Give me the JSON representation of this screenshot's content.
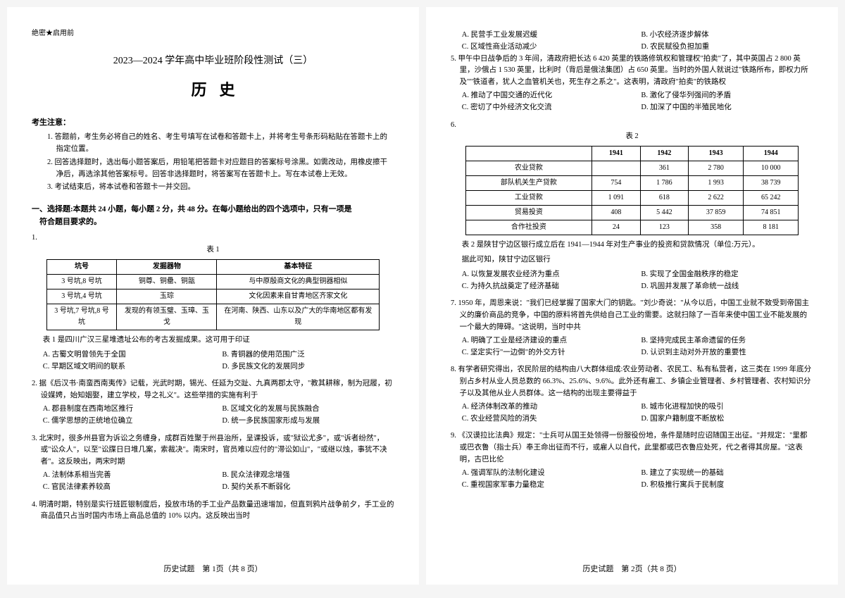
{
  "header_mark": "绝密★启用前",
  "title_main": "2023—2024 学年高中毕业班阶段性测试（三）",
  "title_subject": "历史",
  "notice_title": "考生注意：",
  "notice_items": [
    "1. 答题前，考生务必将自己的姓名、考生号填写在试卷和答题卡上，并将考生号条形码粘贴在答题卡上的指定位置。",
    "2. 回答选择题时，选出每小题答案后，用铅笔把答题卡对应题目的答案标号涂黑。如需改动，用橡皮擦干净后，再选涂其他答案标号。回答非选择题时，将答案写在答题卡上。写在本试卷上无效。",
    "3. 考试结束后，将本试卷和答题卡一并交回。"
  ],
  "section1_title": "一、选择题:本题共 24 小题，每小题 2 分，共 48 分。在每小题给出的四个选项中，只有一项是",
  "section1_title2": "符合题目要求的。",
  "q1": {
    "num": "1.",
    "table_caption": "表 1",
    "headers": [
      "坑号",
      "发掘器物",
      "基本特征"
    ],
    "rows": [
      [
        "3 号坑,8 号坑",
        "铜尊、铜罍、铜瓿",
        "与中原殷商文化的典型铜器相似"
      ],
      [
        "3 号坑,4 号坑",
        "玉琮",
        "文化因素来自甘青地区齐家文化"
      ],
      [
        "3 号坑,7 号坑,8 号坑",
        "发现的有领玉璧、玉璋、玉戈",
        "在河南、陕西、山东以及广大的华南地区都有发现"
      ]
    ],
    "note": "表 1 是四川广汉三星堆遗址公布的考古发掘成果。这可用于印证",
    "opts": [
      "A. 古蜀文明曾领先于全国",
      "B. 青铜器的使用范围广泛",
      "C. 早期区域文明间的联系",
      "D. 多民族文化的发展同步"
    ]
  },
  "q2": {
    "num": "2.",
    "text": "据《后汉书·南蛮西南夷传》记载，光武时期，锡光、任延为交趾、九真两郡太守，\"教其耕稼，制为冠履，初设媒娉，始知姻娶，建立学校，导之礼义\"。这些举措的实施有利于",
    "opts": [
      "A. 郡县制度在西南地区推行",
      "B. 区域文化的发展与民族融合",
      "C. 儒学思想的正统地位确立",
      "D. 统一多民族国家形成与发展"
    ]
  },
  "q3": {
    "num": "3.",
    "text": "北宋时，很多州县官为诉讼之务缠身，成群百姓聚于州县治所，呈课投诉，或\"狱讼尤多\"，或\"诉者纷然\"，或\"讼众人\"，以至\"讼牒日日堆几案，索裁决\"。南宋时，官员难以应付的\"滞讼如山\"，\"或继以烛，事犹不决者\"。这反映出，两宋时期",
    "opts": [
      "A. 法制体系相当完善",
      "B. 民众法律观念增强",
      "C. 官民法律素养较高",
      "D. 契约关系不断弱化"
    ]
  },
  "q4": {
    "num": "4.",
    "text": "明清时期，特别是实行班匠银制度后，投放市场的手工业产品数量迅速增加，但直到鸦片战争前夕，手工业的商品值只占当时国内市场上商品总值的 10% 以内。这反映出当时",
    "opts": [
      "A. 民营手工业发展迟缓",
      "B. 小农经济逐步解体",
      "C. 区域性商业活动减少",
      "D. 农民赋役负担加重"
    ]
  },
  "q5": {
    "num": "5.",
    "text": "甲午中日战争后的 3 年间，清政府把长达 6 420 英里的铁路修筑权和管理权\"拍卖\"了，其中英国占 2 800 英里，沙俄占 1 530 英里，比利时（背后是俄法集团）占 650 英里。当时的外国人就说过\"铁路所布，即权力所及\"\"铁道者，犹人之血管机关也，死生存之系之\"。这表明，清政府\"拍卖\"的铁路权",
    "opts": [
      "A. 推动了中国交通的近代化",
      "B. 激化了侵华列强间的矛盾",
      "C. 密切了中外经济文化交流",
      "D. 加深了中国的半殖民地化"
    ]
  },
  "q6": {
    "num": "6.",
    "table_caption": "表 2",
    "headers": [
      "",
      "1941",
      "1942",
      "1943",
      "1944"
    ],
    "rows": [
      [
        "农业贷款",
        "",
        "361",
        "2 780",
        "10 000"
      ],
      [
        "部队机关生产贷款",
        "754",
        "1 786",
        "1 993",
        "38 739"
      ],
      [
        "工业贷款",
        "1 091",
        "618",
        "2 622",
        "65 242"
      ],
      [
        "贸易投资",
        "408",
        "5 442",
        "37 859",
        "74 851"
      ],
      [
        "合作社投资",
        "24",
        "123",
        "358",
        "8 181"
      ]
    ],
    "note1": "表 2 是陕甘宁边区银行成立后在 1941—1944 年对生产事业的投资和贷款情况（单位:万元）。",
    "note2": "据此可知，陕甘宁边区银行",
    "opts": [
      "A. 以恢复发展农业经济为重点",
      "B. 实现了全国金融秩序的稳定",
      "C. 为持久抗战奠定了经济基础",
      "D. 巩固并发展了革命统一战线"
    ]
  },
  "q7": {
    "num": "7.",
    "text": "1950 年，周恩来说：\"我们已经掌握了国家大门的钥匙。\"刘少奇说：\"从今以后，中国工业就不致受到帝国主义的廉价商品的竞争，中国的原料将首先供给自己工业的需要。这就扫除了一百年来使中国工业不能发展的一个最大的障碍。\"这说明，当时中共",
    "opts": [
      "A. 明确了工业是经济建设的重点",
      "B. 坚持完成民主革命遗留的任务",
      "C. 坚定实行\"一边倒\"的外交方针",
      "D. 认识到主动对外开放的重要性"
    ]
  },
  "q8": {
    "num": "8.",
    "text": "有学者研究得出，农民阶层的结构由八大群体组成:农业劳动者、农民工、私有私营者，这三类在 1999 年底分别占乡村从业人员总数的 66.3%、25.6%、9.6%。此外还有雇工、乡镇企业管理者、乡村管理者、农村知识分子以及其他从业人员群体。这一结构的出现主要得益于",
    "opts": [
      "A. 经济体制改革的推动",
      "B. 城市化进程加快的吸引",
      "C. 农业经营风险的消失",
      "D. 国家户籍制度不断放松"
    ]
  },
  "q9": {
    "num": "9.",
    "text": "《汉谟拉比法典》规定：\"士兵可从国王处领得一份服役份地，条件是随时应诏随国王出征。\"并规定：\"里都或巴衣鲁（指士兵）奉王命出征而不行，或雇人以自代，此里都或巴衣鲁应处死，代之者得其房屋。\"这表明，古巴比伦",
    "opts": [
      "A. 强调军队的法制化建设",
      "B. 建立了实现统一的基础",
      "C. 重视国家军事力量稳定",
      "D. 积极推行寓兵于民制度"
    ]
  },
  "footer1": "历史试题　第 1页（共 8 页）",
  "footer2": "历史试题　第 2页（共 8 页）"
}
